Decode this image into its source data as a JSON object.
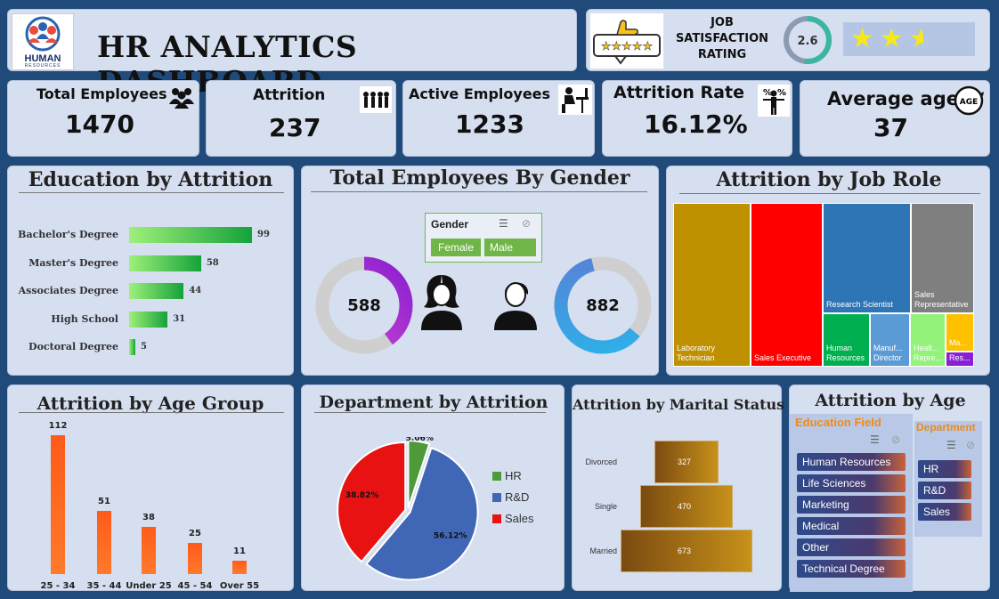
{
  "header": {
    "title": "HR ANALYTICS DASHBOARD",
    "logo_text": "HUMAN",
    "logo_subtext": "RESOURCES",
    "job_satisfaction_label": "JOB SATISFACTION RATING",
    "rating_value": "2.6",
    "rating_fraction": 0.52,
    "stars": 2.6
  },
  "kpis": [
    {
      "label": "Total Employees",
      "value": "1470",
      "icon": "people-group-icon"
    },
    {
      "label": "Attrition",
      "value": "237",
      "icon": "people-leaving-icon"
    },
    {
      "label": "Active Employees",
      "value": "1233",
      "icon": "person-at-desk-icon"
    },
    {
      "label": "Attrition Rate",
      "value": "16.12%",
      "icon": "percent-person-icon"
    },
    {
      "label": "Average age",
      "value": "37",
      "icon": "age-badge-icon"
    }
  ],
  "age_badge_text": "AGE",
  "sections": {
    "education": "Education by Attrition",
    "gender": "Total Employees By Gender",
    "jobrole": "Attrition by Job Role",
    "agegroup": "Attrition by Age Group",
    "department": "Department by Attrition",
    "marital": "Attrition by Marital Status",
    "attrition_age": "Attrition by Age"
  },
  "gender_slicer": {
    "title": "Gender",
    "options": [
      "Female",
      "Male"
    ]
  },
  "education_slicer": {
    "title": "Education Field",
    "options": [
      "Human Resources",
      "Life Sciences",
      "Marketing",
      "Medical",
      "Other",
      "Technical Degree"
    ]
  },
  "department_slicer": {
    "title": "Department",
    "options": [
      "HR",
      "R&D",
      "Sales"
    ]
  },
  "chart_data": [
    {
      "id": "education",
      "type": "bar",
      "orientation": "horizontal",
      "title": "Education by Attrition",
      "categories": [
        "Bachelor's Degree",
        "Master's Degree",
        "Associates Degree",
        "High School",
        "Doctoral Degree"
      ],
      "values": [
        99,
        58,
        44,
        31,
        5
      ],
      "colors": {
        "start": "#9ef07a",
        "end": "#15a23a"
      }
    },
    {
      "id": "gender",
      "type": "pie",
      "title": "Total Employees By Gender",
      "series": [
        {
          "name": "Female",
          "value": 588,
          "total": 1470,
          "color": "#b63cc8"
        },
        {
          "name": "Male",
          "value": 882,
          "total": 1470,
          "color": "#3a8ee0"
        }
      ]
    },
    {
      "id": "jobrole",
      "type": "heatmap",
      "subtype": "treemap",
      "title": "Attrition by Job Role",
      "items": [
        {
          "label": "Laboratory Technician",
          "color": "#bf9000"
        },
        {
          "label": "Sales Executive",
          "color": "#ff0000"
        },
        {
          "label": "Research Scientist",
          "color": "#2e75b6"
        },
        {
          "label": "Sales Representative",
          "color": "#7f7f7f"
        },
        {
          "label": "Human Resources",
          "color": "#00b050"
        },
        {
          "label": "Manuf... Director",
          "color": "#5b9bd5"
        },
        {
          "label": "Healt... Repre...",
          "color": "#92f27a"
        },
        {
          "label": "Ma...",
          "color": "#ffc000"
        },
        {
          "label": "Res...",
          "color": "#8b1fd6"
        }
      ]
    },
    {
      "id": "agegroup",
      "type": "bar",
      "title": "Attrition by Age Group",
      "categories": [
        "25 - 34",
        "35 - 44",
        "Under 25",
        "45 - 54",
        "Over 55"
      ],
      "values": [
        112,
        51,
        38,
        25,
        11
      ],
      "ylim": [
        0,
        112
      ]
    },
    {
      "id": "department",
      "type": "pie",
      "title": "Department by Attrition",
      "categories": [
        "HR",
        "R&D",
        "Sales"
      ],
      "values": [
        5.06,
        56.12,
        38.82
      ],
      "labels": [
        "5.06%",
        "56.12%",
        "38.82%"
      ],
      "colors": [
        "#4e9a3a",
        "#3f67b5",
        "#e81212"
      ]
    },
    {
      "id": "marital",
      "type": "bar",
      "orientation": "horizontal",
      "title": "Attrition by Marital Status",
      "categories": [
        "Divorced",
        "Single",
        "Married"
      ],
      "values": [
        327,
        470,
        673
      ]
    }
  ]
}
